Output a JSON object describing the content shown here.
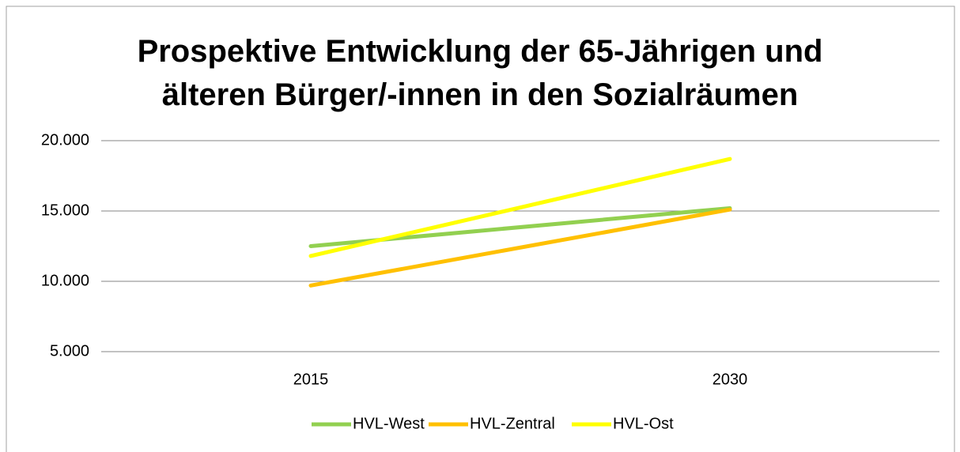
{
  "chart_data": {
    "type": "line",
    "title": "Prospektive Entwicklung der 65-Jährigen und älteren Bürger/-innen in den Sozialräumen",
    "categories": [
      "2015",
      "2030"
    ],
    "series": [
      {
        "name": "HVL-West",
        "color": "#92d050",
        "values": [
          12500,
          15200
        ]
      },
      {
        "name": "HVL-Zentral",
        "color": "#ffc000",
        "values": [
          9700,
          15100
        ]
      },
      {
        "name": "HVL-Ost",
        "color": "#ffff00",
        "values": [
          11800,
          18700
        ]
      }
    ],
    "ylim": [
      5000,
      20000
    ],
    "yticks": [
      {
        "value": 5000,
        "label": "5.000"
      },
      {
        "value": 10000,
        "label": "10.000"
      },
      {
        "value": 15000,
        "label": "15.000"
      },
      {
        "value": 20000,
        "label": "20.000"
      }
    ],
    "grid": true,
    "legend": "bottom"
  }
}
